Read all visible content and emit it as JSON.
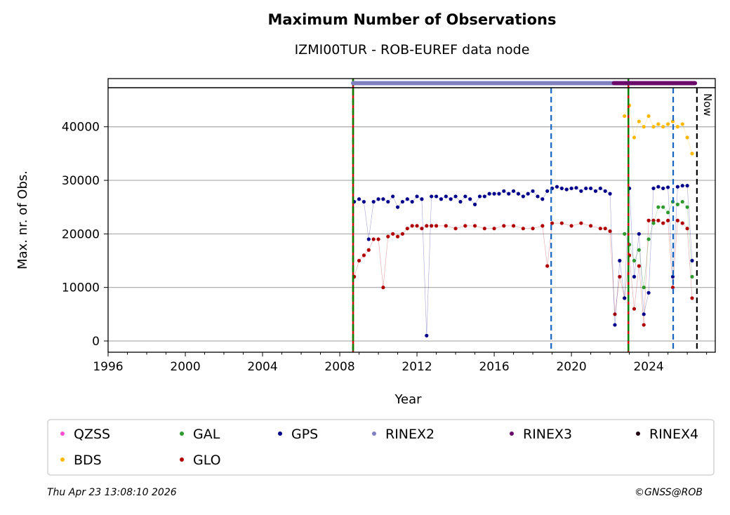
{
  "chart_data": {
    "type": "scatter",
    "title": "Maximum Number of Observations",
    "subtitle": "IZMI00TUR - ROB-EUREF data node",
    "xlabel": "Year",
    "ylabel": "Max. nr. of Obs.",
    "xlim": [
      1996,
      2027.45
    ],
    "ylim": [
      -2100,
      47300
    ],
    "xticks": [
      1996,
      2000,
      2004,
      2008,
      2012,
      2016,
      2020,
      2024
    ],
    "yticks": [
      0,
      10000,
      20000,
      30000,
      40000
    ],
    "grid": "horizontal",
    "legend_placement": "bottom",
    "now_label": "Now",
    "vertical_lines": [
      {
        "x": 2008.69,
        "style": "green-red-dashed"
      },
      {
        "x": 2018.95,
        "style": "blue-dashed"
      },
      {
        "x": 2022.95,
        "style": "green-red-dashed"
      },
      {
        "x": 2025.27,
        "style": "blue-dashed"
      },
      {
        "x": 2026.5,
        "style": "black-dashed",
        "label": "Now"
      }
    ],
    "rinex_bars": [
      {
        "name": "RINEX2",
        "start": 2008.69,
        "end": 2022.2
      },
      {
        "name": "RINEX3",
        "start": 2022.2,
        "end": 2026.4
      }
    ],
    "legend": [
      {
        "name": "QZSS",
        "color": "#ff4fd0"
      },
      {
        "name": "GAL",
        "color": "#2e9a2e"
      },
      {
        "name": "GPS",
        "color": "#00008b"
      },
      {
        "name": "RINEX2",
        "color": "#8080c0"
      },
      {
        "name": "RINEX3",
        "color": "#6a0a6a"
      },
      {
        "name": "RINEX4",
        "color": "#200010"
      },
      {
        "name": "BDS",
        "color": "#ffb800"
      },
      {
        "name": "GLO",
        "color": "#b00000"
      }
    ],
    "series": [
      {
        "name": "GLO",
        "color": "#b00000",
        "x": [
          2008.75,
          2009,
          2009.25,
          2009.5,
          2009.75,
          2010,
          2010.25,
          2010.5,
          2010.75,
          2011,
          2011.25,
          2011.5,
          2011.75,
          2012,
          2012.25,
          2012.5,
          2012.75,
          2013,
          2013.5,
          2014,
          2014.5,
          2015,
          2015.5,
          2016,
          2016.5,
          2017,
          2017.5,
          2018,
          2018.5,
          2018.75,
          2019,
          2019.5,
          2020,
          2020.5,
          2021,
          2021.5,
          2021.75,
          2022,
          2022.25,
          2022.5,
          2022.75,
          2023,
          2023.25,
          2023.5,
          2023.75,
          2024,
          2024.25,
          2024.5,
          2024.75,
          2025,
          2025.25,
          2025.5,
          2025.75,
          2026,
          2026.25
        ],
        "y": [
          12000,
          15000,
          16000,
          17000,
          19000,
          19000,
          10000,
          19500,
          20000,
          19500,
          20000,
          21000,
          21500,
          21500,
          21000,
          21500,
          21500,
          21500,
          21500,
          21000,
          21500,
          21500,
          21000,
          21000,
          21500,
          21500,
          21000,
          21000,
          21500,
          14000,
          22000,
          22000,
          21500,
          22000,
          21500,
          21000,
          21000,
          20500,
          5000,
          12000,
          8000,
          16000,
          6000,
          14000,
          3000,
          22500,
          22500,
          22500,
          22000,
          22500,
          10000,
          22500,
          22000,
          21000,
          8000
        ]
      },
      {
        "name": "GPS",
        "color": "#00008b",
        "x": [
          2008.75,
          2009,
          2009.25,
          2009.5,
          2009.75,
          2010,
          2010.25,
          2010.5,
          2010.75,
          2011,
          2011.25,
          2011.5,
          2011.75,
          2012,
          2012.25,
          2012.5,
          2012.75,
          2013,
          2013.25,
          2013.5,
          2013.75,
          2014,
          2014.25,
          2014.5,
          2014.75,
          2015,
          2015.25,
          2015.5,
          2015.75,
          2016,
          2016.25,
          2016.5,
          2016.75,
          2017,
          2017.25,
          2017.5,
          2017.75,
          2018,
          2018.25,
          2018.5,
          2018.75,
          2019,
          2019.25,
          2019.5,
          2019.75,
          2020,
          2020.25,
          2020.5,
          2020.75,
          2021,
          2021.25,
          2021.5,
          2021.75,
          2022,
          2022.25,
          2022.5,
          2022.75,
          2023,
          2023.25,
          2023.5,
          2023.75,
          2024,
          2024.25,
          2024.5,
          2024.75,
          2025,
          2025.25,
          2025.5,
          2025.75,
          2026,
          2026.25
        ],
        "y": [
          26000,
          26500,
          26000,
          19000,
          26000,
          26500,
          26500,
          26000,
          27000,
          25000,
          26000,
          26500,
          26000,
          27000,
          26500,
          1000,
          27000,
          27000,
          26500,
          27000,
          26500,
          27000,
          26000,
          27000,
          26500,
          25500,
          27000,
          27000,
          27500,
          27500,
          27500,
          28000,
          27500,
          28000,
          27500,
          27000,
          27500,
          28000,
          27000,
          26500,
          28000,
          28500,
          28800,
          28500,
          28300,
          28500,
          28600,
          28000,
          28500,
          28500,
          28000,
          28500,
          28000,
          27500,
          3000,
          15000,
          8000,
          28500,
          12000,
          20000,
          5000,
          9000,
          28500,
          28800,
          28500,
          28700,
          12000,
          28800,
          29000,
          29000,
          15000
        ]
      },
      {
        "name": "GAL",
        "color": "#2e9a2e",
        "x": [
          2022.75,
          2023,
          2023.25,
          2023.5,
          2023.75,
          2024,
          2024.25,
          2024.5,
          2024.75,
          2025,
          2025.25,
          2025.5,
          2025.75,
          2026,
          2026.25
        ],
        "y": [
          20000,
          18000,
          15000,
          17000,
          10000,
          19000,
          22000,
          25000,
          25000,
          24000,
          26000,
          25500,
          26000,
          25000,
          12000
        ]
      },
      {
        "name": "BDS",
        "color": "#ffb800",
        "x": [
          2022.75,
          2023,
          2023.25,
          2023.5,
          2023.75,
          2024,
          2024.25,
          2024.5,
          2024.75,
          2025,
          2025.25,
          2025.5,
          2025.75,
          2026,
          2026.25
        ],
        "y": [
          42000,
          44000,
          38000,
          41000,
          40000,
          42000,
          40000,
          40500,
          40000,
          40500,
          41000,
          40000,
          40500,
          38000,
          35000
        ]
      }
    ]
  },
  "footer": {
    "timestamp": "Thu Apr 23 13:08:10 2026",
    "copyright": "©GNSS@ROB"
  }
}
